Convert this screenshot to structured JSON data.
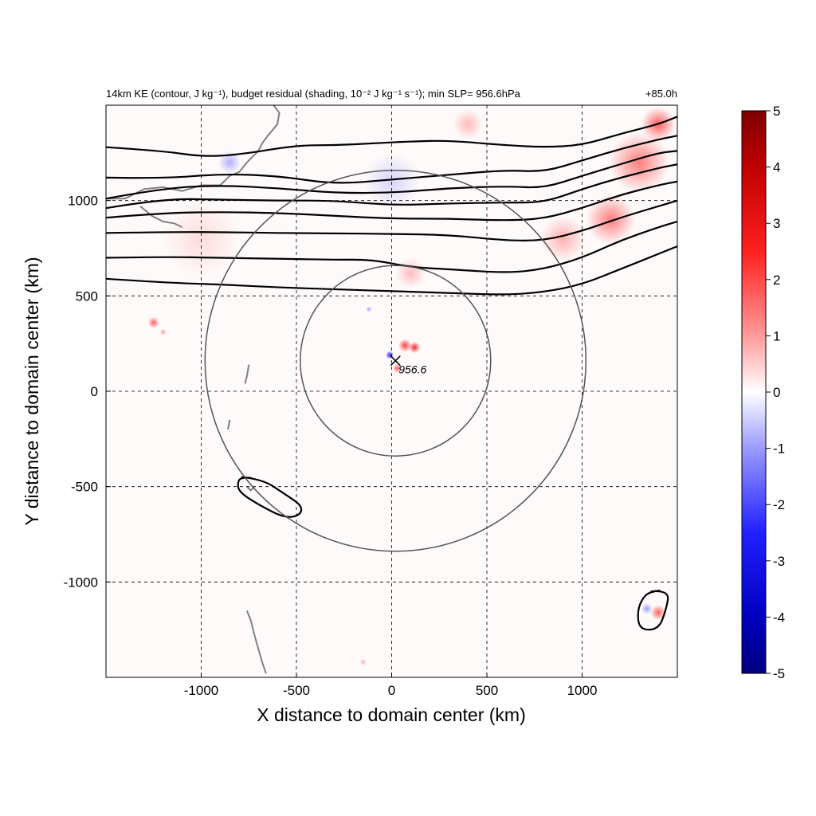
{
  "chart_data": {
    "type": "heatmap",
    "title": "14km KE (contour, J kg⁻¹), budget residual (shading, 10⁻² J kg⁻¹ s⁻¹); min SLP= 956.6hPa",
    "time_label": "+85.0h",
    "xlabel": "X distance to domain center (km)",
    "ylabel": "Y distance to domain center (km)",
    "xlim": [
      -1500,
      1500
    ],
    "ylim": [
      -1500,
      1500
    ],
    "x_ticks": [
      -1000,
      -500,
      0,
      500,
      1000
    ],
    "y_ticks": [
      -1000,
      -500,
      0,
      500,
      1000
    ],
    "x_tick_labels": [
      "-1000",
      "-500",
      "0",
      "500",
      "1000"
    ],
    "y_tick_labels": [
      "-1000",
      "-500",
      "0",
      "500",
      "1000"
    ],
    "grid": "dashed",
    "colorbar": {
      "min": -5,
      "max": 5,
      "ticks": [
        5,
        4,
        3,
        2,
        1,
        0,
        -1,
        -2,
        -3,
        -4,
        -5
      ],
      "tick_labels": [
        "5",
        "4",
        "3",
        "2",
        "1",
        "0",
        "-1",
        "-2",
        "-3",
        "-4",
        "-5"
      ],
      "colors": [
        "#00007f",
        "#0000ff",
        "#ffffff",
        "#ff0000",
        "#7f0000"
      ]
    },
    "storm_center": {
      "x": 20,
      "y": 160,
      "label": "956.6"
    },
    "circles": [
      {
        "cx": 20,
        "cy": 160,
        "r": 500
      },
      {
        "cx": 20,
        "cy": 160,
        "r": 1000
      }
    ],
    "ke_contours": [
      [
        [
          -1500,
          590
        ],
        [
          -1200,
          570
        ],
        [
          -900,
          560
        ],
        [
          -600,
          545
        ],
        [
          -300,
          535
        ],
        [
          0,
          525
        ],
        [
          300,
          515
        ],
        [
          600,
          505
        ],
        [
          800,
          520
        ],
        [
          1000,
          560
        ],
        [
          1200,
          640
        ],
        [
          1400,
          720
        ],
        [
          1500,
          760
        ]
      ],
      [
        [
          -1500,
          700
        ],
        [
          -1200,
          705
        ],
        [
          -900,
          700
        ],
        [
          -600,
          695
        ],
        [
          -300,
          690
        ],
        [
          -100,
          690
        ],
        [
          100,
          650
        ],
        [
          300,
          640
        ],
        [
          600,
          620
        ],
        [
          800,
          640
        ],
        [
          1000,
          700
        ],
        [
          1200,
          790
        ],
        [
          1400,
          860
        ],
        [
          1500,
          890
        ]
      ],
      [
        [
          -1500,
          830
        ],
        [
          -1200,
          835
        ],
        [
          -900,
          835
        ],
        [
          -600,
          830
        ],
        [
          -300,
          828
        ],
        [
          0,
          825
        ],
        [
          300,
          820
        ],
        [
          600,
          790
        ],
        [
          800,
          790
        ],
        [
          1000,
          840
        ],
        [
          1200,
          910
        ],
        [
          1400,
          970
        ],
        [
          1500,
          1000
        ]
      ],
      [
        [
          -1500,
          910
        ],
        [
          -1200,
          935
        ],
        [
          -900,
          940
        ],
        [
          -600,
          935
        ],
        [
          -300,
          920
        ],
        [
          0,
          905
        ],
        [
          300,
          905
        ],
        [
          600,
          895
        ],
        [
          800,
          905
        ],
        [
          1000,
          960
        ],
        [
          1200,
          1030
        ],
        [
          1400,
          1080
        ],
        [
          1500,
          1100
        ]
      ],
      [
        [
          -1500,
          960
        ],
        [
          -1200,
          1010
        ],
        [
          -900,
          1005
        ],
        [
          -600,
          1000
        ],
        [
          -300,
          1000
        ],
        [
          0,
          975
        ],
        [
          300,
          985
        ],
        [
          600,
          990
        ],
        [
          800,
          990
        ],
        [
          1000,
          1060
        ],
        [
          1200,
          1120
        ],
        [
          1400,
          1170
        ],
        [
          1500,
          1190
        ]
      ],
      [
        [
          -1500,
          1010
        ],
        [
          -1200,
          1065
        ],
        [
          -900,
          1080
        ],
        [
          -600,
          1065
        ],
        [
          -300,
          1040
        ],
        [
          0,
          1040
        ],
        [
          300,
          1065
        ],
        [
          600,
          1075
        ],
        [
          800,
          1065
        ],
        [
          1000,
          1130
        ],
        [
          1200,
          1190
        ],
        [
          1400,
          1250
        ],
        [
          1500,
          1260
        ]
      ],
      [
        [
          -1500,
          1120
        ],
        [
          -1200,
          1115
        ],
        [
          -900,
          1140
        ],
        [
          -600,
          1130
        ],
        [
          -300,
          1085
        ],
        [
          0,
          1110
        ],
        [
          300,
          1135
        ],
        [
          600,
          1160
        ],
        [
          800,
          1150
        ],
        [
          1000,
          1210
        ],
        [
          1200,
          1270
        ],
        [
          1400,
          1320
        ],
        [
          1500,
          1340
        ]
      ],
      [
        [
          -1500,
          1280
        ],
        [
          -1200,
          1260
        ],
        [
          -1000,
          1230
        ],
        [
          -800,
          1240
        ],
        [
          -500,
          1290
        ],
        [
          -300,
          1290
        ],
        [
          -100,
          1300
        ],
        [
          100,
          1310
        ],
        [
          300,
          1315
        ],
        [
          600,
          1290
        ],
        [
          800,
          1280
        ],
        [
          1000,
          1290
        ],
        [
          1200,
          1350
        ],
        [
          1400,
          1400
        ],
        [
          1500,
          1440
        ]
      ]
    ],
    "ke_closed_contours": [
      [
        [
          -790,
          -450
        ],
        [
          -680,
          -460
        ],
        [
          -560,
          -540
        ],
        [
          -470,
          -600
        ],
        [
          -480,
          -650
        ],
        [
          -560,
          -665
        ],
        [
          -690,
          -600
        ],
        [
          -800,
          -530
        ],
        [
          -810,
          -480
        ]
      ],
      [
        [
          1360,
          -1050
        ],
        [
          1460,
          -1040
        ],
        [
          1440,
          -1150
        ],
        [
          1400,
          -1250
        ],
        [
          1300,
          -1250
        ],
        [
          1290,
          -1150
        ],
        [
          1320,
          -1080
        ]
      ]
    ],
    "residual_blobs": [
      {
        "x": 70,
        "y": 240,
        "v": 3.0,
        "r": 35
      },
      {
        "x": 120,
        "y": 230,
        "v": 3.5,
        "r": 30
      },
      {
        "x": -10,
        "y": 190,
        "v": -3.5,
        "r": 22
      },
      {
        "x": 30,
        "y": 120,
        "v": 2.5,
        "r": 25
      },
      {
        "x": -1250,
        "y": 360,
        "v": 2.5,
        "r": 30
      },
      {
        "x": -1200,
        "y": 310,
        "v": 1.5,
        "r": 18
      },
      {
        "x": 1300,
        "y": 1200,
        "v": 2.0,
        "r": 160
      },
      {
        "x": 1150,
        "y": 900,
        "v": 2.0,
        "r": 130
      },
      {
        "x": 1400,
        "y": 1400,
        "v": 2.5,
        "r": 90
      },
      {
        "x": 400,
        "y": 1400,
        "v": 1.0,
        "r": 80
      },
      {
        "x": 100,
        "y": 620,
        "v": 1.0,
        "r": 80
      },
      {
        "x": 900,
        "y": 800,
        "v": 1.2,
        "r": 120
      },
      {
        "x": -850,
        "y": 1200,
        "v": -1.2,
        "r": 60
      },
      {
        "x": 1400,
        "y": -1160,
        "v": 2.5,
        "r": 40
      },
      {
        "x": 1340,
        "y": -1140,
        "v": -1.5,
        "r": 30
      },
      {
        "x": -120,
        "y": 430,
        "v": -1.5,
        "r": 15
      },
      {
        "x": -150,
        "y": -1420,
        "v": 1.2,
        "r": 18
      },
      {
        "x": 0,
        "y": 1100,
        "v": -0.6,
        "r": 150
      },
      {
        "x": -1000,
        "y": 800,
        "v": 0.5,
        "r": 200
      }
    ],
    "coast_segments": [
      [
        [
          -1500,
          1010
        ],
        [
          -1400,
          1010
        ],
        [
          -1300,
          1060
        ],
        [
          -1200,
          1070
        ],
        [
          -1100,
          1050
        ],
        [
          -1000,
          1080
        ],
        [
          -900,
          1080
        ],
        [
          -850,
          1130
        ],
        [
          -800,
          1150
        ],
        [
          -760,
          1200
        ],
        [
          -720,
          1240
        ],
        [
          -700,
          1260
        ],
        [
          -680,
          1300
        ],
        [
          -650,
          1340
        ],
        [
          -600,
          1400
        ],
        [
          -590,
          1460
        ],
        [
          -620,
          1500
        ]
      ],
      [
        [
          -1320,
          970
        ],
        [
          -1260,
          920
        ],
        [
          -1200,
          890
        ],
        [
          -1140,
          880
        ],
        [
          -1100,
          860
        ]
      ],
      [
        [
          -760,
          -500
        ],
        [
          -740,
          -520
        ],
        [
          -720,
          -500
        ]
      ],
      [
        [
          -760,
          -1150
        ],
        [
          -740,
          -1200
        ],
        [
          -720,
          -1280
        ],
        [
          -700,
          -1350
        ],
        [
          -680,
          -1420
        ],
        [
          -660,
          -1480
        ]
      ],
      [
        [
          -750,
          140
        ],
        [
          -760,
          80
        ],
        [
          -770,
          40
        ]
      ],
      [
        [
          -850,
          -150
        ],
        [
          -860,
          -200
        ]
      ]
    ]
  }
}
